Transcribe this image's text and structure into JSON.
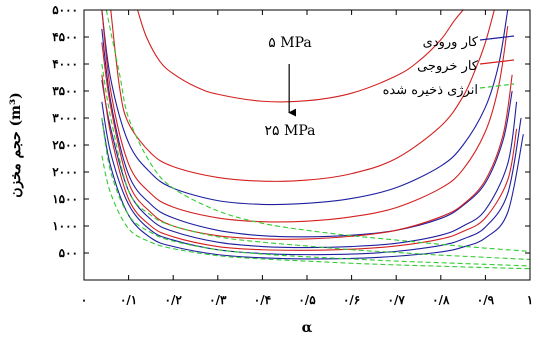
{
  "chart_data": {
    "type": "line",
    "xlabel": "α",
    "ylabel": "حجم مخزن (m³)",
    "xlim": [
      0,
      1
    ],
    "ylim": [
      0,
      5000
    ],
    "x_ticks": [
      {
        "value": 0,
        "label": "۰"
      },
      {
        "value": 0.1,
        "label": "۰/۱"
      },
      {
        "value": 0.2,
        "label": "۰/۲"
      },
      {
        "value": 0.3,
        "label": "۰/۳"
      },
      {
        "value": 0.4,
        "label": "۰/۴"
      },
      {
        "value": 0.5,
        "label": "۰/۵"
      },
      {
        "value": 0.6,
        "label": "۰/۶"
      },
      {
        "value": 0.7,
        "label": "۰/۷"
      },
      {
        "value": 0.8,
        "label": "۰/۸"
      },
      {
        "value": 0.9,
        "label": "۰/۹"
      },
      {
        "value": 1,
        "label": "۱"
      }
    ],
    "y_ticks": [
      {
        "value": 500,
        "label": "۵۰۰"
      },
      {
        "value": 1000,
        "label": "۱۰۰۰"
      },
      {
        "value": 1500,
        "label": "۱۵۰۰"
      },
      {
        "value": 2000,
        "label": "۲۰۰۰"
      },
      {
        "value": 2500,
        "label": "۲۵۰۰"
      },
      {
        "value": 3000,
        "label": "۳۰۰۰"
      },
      {
        "value": 3500,
        "label": "۳۵۰۰"
      },
      {
        "value": 4000,
        "label": "۴۰۰۰"
      },
      {
        "value": 4500,
        "label": "۴۵۰۰"
      },
      {
        "value": 5000,
        "label": "۵۰۰۰"
      }
    ],
    "legend": {
      "placement": "top-right",
      "entries": [
        {
          "label": "کار ورودی",
          "color": "#1f1fa0",
          "style": "solid"
        },
        {
          "label": "کار خروجی",
          "color": "#d42020",
          "style": "solid"
        },
        {
          "label": "انرژی ذخیره شده",
          "color": "#33cc33",
          "style": "dashed"
        }
      ]
    },
    "annotations": {
      "top_label": "۵ MPa",
      "bottom_label": "۲۵ MPa",
      "arrow": {
        "from": [
          0.46,
          4000
        ],
        "to": [
          0.46,
          3100
        ]
      }
    },
    "grid": false,
    "series": [
      {
        "group": "input",
        "color": "#1f1fa0",
        "style": "solid",
        "x": [
          0.04,
          0.06,
          0.1,
          0.15,
          0.2,
          0.3,
          0.4,
          0.5,
          0.6,
          0.7,
          0.8,
          0.85,
          0.9,
          0.93,
          0.95
        ],
        "y": [
          5000,
          3720,
          2540,
          1980,
          1700,
          1470,
          1400,
          1420,
          1510,
          1710,
          2110,
          2500,
          3200,
          4000,
          5000
        ]
      },
      {
        "group": "input",
        "color": "#1f1fa0",
        "style": "solid",
        "x": [
          0.04,
          0.06,
          0.1,
          0.15,
          0.2,
          0.3,
          0.4,
          0.5,
          0.6,
          0.7,
          0.8,
          0.85,
          0.9,
          0.94,
          0.96
        ],
        "y": [
          4650,
          3300,
          1950,
          1400,
          1150,
          920,
          820,
          800,
          830,
          920,
          1140,
          1380,
          1800,
          2600,
          3500
        ]
      },
      {
        "group": "input",
        "color": "#1f1fa0",
        "style": "solid",
        "x": [
          0.04,
          0.06,
          0.1,
          0.15,
          0.2,
          0.3,
          0.4,
          0.5,
          0.6,
          0.7,
          0.8,
          0.85,
          0.9,
          0.95,
          0.97
        ],
        "y": [
          3700,
          2800,
          1650,
          1120,
          900,
          700,
          620,
          600,
          620,
          680,
          830,
          1000,
          1300,
          2150,
          3300
        ]
      },
      {
        "group": "input",
        "color": "#1f1fa0",
        "style": "solid",
        "x": [
          0.04,
          0.06,
          0.1,
          0.15,
          0.2,
          0.3,
          0.4,
          0.5,
          0.6,
          0.7,
          0.8,
          0.85,
          0.9,
          0.95,
          0.98
        ],
        "y": [
          3300,
          2350,
          1400,
          920,
          740,
          560,
          490,
          470,
          480,
          530,
          640,
          760,
          980,
          1600,
          3000
        ]
      },
      {
        "group": "input",
        "color": "#1f1fa0",
        "style": "solid",
        "x": [
          0.04,
          0.06,
          0.1,
          0.15,
          0.2,
          0.3,
          0.4,
          0.5,
          0.6,
          0.7,
          0.8,
          0.85,
          0.9,
          0.95,
          0.985
        ],
        "y": [
          3000,
          2100,
          1200,
          780,
          620,
          470,
          410,
          390,
          400,
          440,
          520,
          610,
          780,
          1250,
          2700
        ]
      },
      {
        "group": "output",
        "color": "#d42020",
        "style": "solid",
        "x": [
          0.12,
          0.14,
          0.17,
          0.2,
          0.25,
          0.3,
          0.4,
          0.5,
          0.6,
          0.7,
          0.75,
          0.8,
          0.83,
          0.85
        ],
        "y": [
          5000,
          4500,
          4050,
          3820,
          3580,
          3440,
          3310,
          3320,
          3460,
          3780,
          4050,
          4450,
          4800,
          5000
        ]
      },
      {
        "group": "output",
        "color": "#d42020",
        "style": "solid",
        "x": [
          0.06,
          0.08,
          0.1,
          0.15,
          0.2,
          0.3,
          0.4,
          0.5,
          0.6,
          0.7,
          0.8,
          0.85,
          0.88,
          0.9,
          0.92
        ],
        "y": [
          5000,
          3550,
          2900,
          2350,
          2100,
          1900,
          1830,
          1850,
          1970,
          2250,
          2850,
          3400,
          3950,
          4400,
          5000
        ]
      },
      {
        "group": "output",
        "color": "#d42020",
        "style": "solid",
        "x": [
          0.04,
          0.06,
          0.1,
          0.15,
          0.2,
          0.3,
          0.4,
          0.5,
          0.6,
          0.7,
          0.8,
          0.85,
          0.9,
          0.93,
          0.95
        ],
        "y": [
          5000,
          3500,
          2150,
          1600,
          1350,
          1150,
          1080,
          1090,
          1170,
          1340,
          1700,
          2050,
          2750,
          3600,
          4700
        ]
      },
      {
        "group": "output",
        "color": "#d42020",
        "style": "solid",
        "x": [
          0.04,
          0.06,
          0.1,
          0.15,
          0.2,
          0.3,
          0.4,
          0.5,
          0.6,
          0.7,
          0.8,
          0.85,
          0.9,
          0.94,
          0.96
        ],
        "y": [
          4400,
          3200,
          1800,
          1250,
          1000,
          820,
          760,
          760,
          810,
          920,
          1170,
          1400,
          1850,
          2700,
          3800
        ]
      },
      {
        "group": "output",
        "color": "#d42020",
        "style": "solid",
        "x": [
          0.04,
          0.06,
          0.1,
          0.15,
          0.2,
          0.3,
          0.4,
          0.5,
          0.6,
          0.7,
          0.8,
          0.85,
          0.9,
          0.95,
          0.97
        ],
        "y": [
          3800,
          2700,
          1500,
          1000,
          800,
          620,
          560,
          550,
          570,
          630,
          760,
          900,
          1150,
          1850,
          2800
        ]
      },
      {
        "group": "stored",
        "color": "#33cc33",
        "style": "dashed",
        "x": [
          0.05,
          0.08,
          0.1,
          0.15,
          0.2,
          0.3,
          0.4,
          0.5,
          0.6,
          0.7,
          0.8,
          0.9,
          1.0
        ],
        "y": [
          5000,
          3800,
          3000,
          2150,
          1700,
          1280,
          1050,
          920,
          820,
          740,
          660,
          590,
          530
        ]
      },
      {
        "group": "stored",
        "color": "#33cc33",
        "style": "dashed",
        "x": [
          0.04,
          0.06,
          0.1,
          0.15,
          0.2,
          0.3,
          0.4,
          0.5,
          0.6,
          0.7,
          0.8,
          0.9,
          1.0
        ],
        "y": [
          4000,
          3000,
          1650,
          1200,
          1000,
          800,
          700,
          630,
          560,
          510,
          460,
          420,
          380
        ]
      },
      {
        "group": "stored",
        "color": "#33cc33",
        "style": "dashed",
        "x": [
          0.04,
          0.06,
          0.1,
          0.15,
          0.2,
          0.3,
          0.4,
          0.5,
          0.6,
          0.7,
          0.8,
          0.9,
          1.0
        ],
        "y": [
          3000,
          2000,
          1200,
          880,
          720,
          560,
          480,
          430,
          390,
          350,
          320,
          290,
          260
        ]
      },
      {
        "group": "stored",
        "color": "#33cc33",
        "style": "dashed",
        "x": [
          0.04,
          0.06,
          0.1,
          0.15,
          0.2,
          0.3,
          0.4,
          0.5,
          0.6,
          0.7,
          0.8,
          0.9,
          1.0
        ],
        "y": [
          2300,
          1600,
          950,
          700,
          580,
          450,
          390,
          350,
          310,
          280,
          255,
          230,
          210
        ]
      }
    ]
  }
}
